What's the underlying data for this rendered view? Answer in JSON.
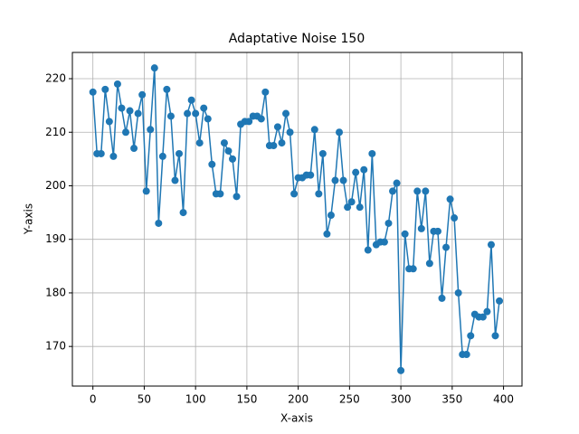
{
  "chart_data": {
    "type": "line",
    "title": "Adaptative Noise 150",
    "xlabel": "X-axis",
    "ylabel": "Y-axis",
    "x": [
      0,
      4,
      8,
      12,
      16,
      20,
      24,
      28,
      32,
      36,
      40,
      44,
      48,
      52,
      56,
      60,
      64,
      68,
      72,
      76,
      80,
      84,
      88,
      92,
      96,
      100,
      104,
      108,
      112,
      116,
      120,
      124,
      128,
      132,
      136,
      140,
      144,
      148,
      152,
      156,
      160,
      164,
      168,
      172,
      176,
      180,
      184,
      188,
      192,
      196,
      200,
      204,
      208,
      212,
      216,
      220,
      224,
      228,
      232,
      236,
      240,
      244,
      248,
      252,
      256,
      260,
      264,
      268,
      272,
      276,
      280,
      284,
      288,
      292,
      296,
      300,
      304,
      308,
      312,
      316,
      320,
      324,
      328,
      332,
      336,
      340,
      344,
      348,
      352,
      356,
      360,
      364,
      368,
      372,
      376,
      380,
      384,
      388,
      392,
      396
    ],
    "values": [
      217.5,
      206,
      206,
      218,
      212,
      205.5,
      219,
      214.5,
      210,
      214,
      207,
      213.5,
      217,
      199,
      210.5,
      222,
      193,
      205.5,
      218,
      213,
      201,
      206,
      195,
      213.5,
      216,
      213.5,
      208,
      214.5,
      212.5,
      204,
      198.5,
      198.5,
      208,
      206.5,
      205,
      198,
      211.5,
      212,
      212,
      213,
      213,
      212.5,
      217.5,
      207.5,
      207.5,
      211,
      208,
      213.5,
      210,
      198.5,
      201.5,
      201.5,
      202,
      202,
      210.5,
      198.5,
      206,
      191,
      194.5,
      201,
      210,
      201,
      196,
      197,
      202.5,
      196,
      203,
      188,
      206,
      189,
      189.5,
      189.5,
      193,
      199,
      200.5,
      165.5,
      191,
      184.5,
      184.5,
      199,
      192,
      199,
      185.5,
      191.5,
      191.5,
      179,
      188.5,
      197.5,
      194,
      180,
      168.5,
      168.5,
      172,
      176,
      175.5,
      175.5,
      176.5,
      189,
      172,
      178.5
    ],
    "color": "#1f77b4",
    "xlim": [
      -20,
      418
    ],
    "ylim": [
      162.6,
      224.9
    ],
    "xticks": [
      0,
      50,
      100,
      150,
      200,
      250,
      300,
      350,
      400
    ],
    "yticks": [
      170,
      180,
      190,
      200,
      210,
      220
    ],
    "grid": true
  }
}
